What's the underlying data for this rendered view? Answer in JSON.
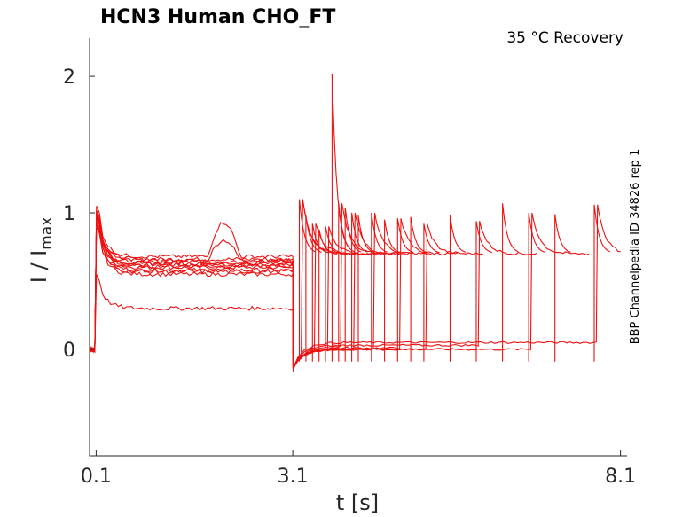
{
  "chart_data": {
    "type": "line",
    "title": "HCN3  Human  CHO_FT",
    "condition": "35 °C  Recovery",
    "side_label": "BBP Channelpedia ID 34826 rep 1",
    "xlabel": "t [s]",
    "ylabel_main": "I / I",
    "ylabel_sub": "max",
    "xlim": [
      0.0,
      8.2
    ],
    "ylim": [
      -0.78,
      2.28
    ],
    "xticks": [
      {
        "value": 0.1,
        "label": "0.1"
      },
      {
        "value": 3.1,
        "label": "3.1"
      },
      {
        "value": 8.1,
        "label": "8.1"
      }
    ],
    "yticks": [
      {
        "value": 0,
        "label": "0"
      },
      {
        "value": 1,
        "label": "1"
      },
      {
        "value": 2,
        "label": "2"
      }
    ],
    "grid": false,
    "color": "#ee1111",
    "protocol": {
      "pre_start": 0.0,
      "step_on": 0.1,
      "step_off": 3.1,
      "end": 8.1,
      "recovery_intervals_s": [
        0.1,
        0.2,
        0.3,
        0.4,
        0.5,
        0.6,
        0.7,
        0.8,
        0.9,
        1.0,
        1.2,
        1.4,
        1.6,
        1.8,
        2.0,
        2.4,
        2.8,
        3.2,
        3.6,
        4.0,
        4.6,
        5.0
      ]
    },
    "series": [
      {
        "plateau": 0.62,
        "trail": 0.0,
        "bump": 0.0,
        "peak": 1.0
      },
      {
        "plateau": 0.64,
        "trail": 0.0,
        "bump": 0.0,
        "peak": 0.98
      },
      {
        "plateau": 0.6,
        "trail": 0.0,
        "bump": 0.0,
        "peak": 0.96
      },
      {
        "plateau": 0.66,
        "trail": 0.02,
        "bump": 0.0,
        "peak": 1.02
      },
      {
        "plateau": 0.58,
        "trail": 0.0,
        "bump": 0.0,
        "peak": 0.94
      },
      {
        "plateau": 0.65,
        "trail": 0.0,
        "bump": 0.15,
        "peak": 1.0
      },
      {
        "plateau": 0.61,
        "trail": 0.01,
        "bump": 0.0,
        "peak": 0.97
      },
      {
        "plateau": 0.55,
        "trail": 0.0,
        "bump": 0.0,
        "peak": 0.92
      },
      {
        "plateau": 0.68,
        "trail": 0.03,
        "bump": 0.25,
        "peak": 1.05
      },
      {
        "plateau": 0.63,
        "trail": 0.0,
        "bump": 0.0,
        "peak": 0.99
      },
      {
        "plateau": 0.3,
        "trail": 0.05,
        "bump": 0.0,
        "peak": 0.55
      },
      {
        "plateau": 0.57,
        "trail": 0.0,
        "bump": 0.0,
        "peak": 0.9
      }
    ],
    "recovery_envelope": {
      "peak_high": [
        1.1,
        0.98,
        0.92,
        0.88,
        0.9,
        2.02,
        1.07,
        1.04,
        1.0,
        0.98,
        1.0,
        0.95,
        0.96,
        0.97,
        0.92,
        0.98,
        0.94,
        1.07,
        1.0,
        0.99,
        1.06,
        0.7
      ],
      "settle_high": 0.7,
      "trough": -0.14
    }
  }
}
